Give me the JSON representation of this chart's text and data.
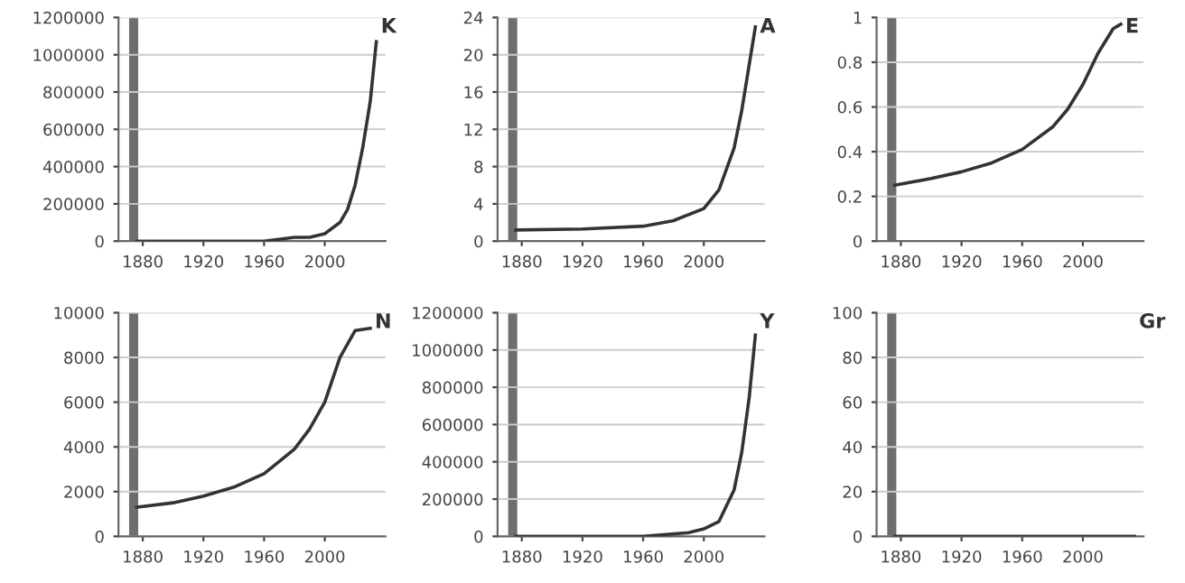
{
  "chart_data": [
    {
      "type": "line",
      "series": [
        {
          "name": "K",
          "color": "#333333",
          "x": [
            1876,
            1920,
            1960,
            1980,
            1990,
            2000,
            2010,
            2015,
            2020,
            2025,
            2030,
            2034
          ],
          "values": [
            0,
            0,
            0,
            20000,
            20000,
            40000,
            100000,
            170000,
            300000,
            500000,
            750000,
            1070000
          ]
        }
      ],
      "xlim": [
        1864,
        2040
      ],
      "xticks": [
        1880,
        1920,
        1960,
        2000
      ],
      "ylim": [
        0,
        1200000
      ],
      "yticks": [
        0,
        200000,
        400000,
        600000,
        800000,
        1000000,
        1200000
      ],
      "grid": "y",
      "bands": [
        {
          "axis": "x",
          "from": 1871,
          "to": 1877,
          "color": "#6e6e6e"
        }
      ]
    },
    {
      "type": "line",
      "series": [
        {
          "name": "A",
          "color": "#333333",
          "x": [
            1876,
            1920,
            1960,
            1980,
            2000,
            2010,
            2020,
            2025,
            2030,
            2034
          ],
          "values": [
            1.2,
            1.3,
            1.6,
            2.2,
            3.5,
            5.5,
            10,
            14,
            19,
            23
          ]
        }
      ],
      "xlim": [
        1864,
        2040
      ],
      "xticks": [
        1880,
        1920,
        1960,
        2000
      ],
      "ylim": [
        0,
        24
      ],
      "yticks": [
        0,
        4,
        8,
        12,
        16,
        20,
        24
      ],
      "grid": "y",
      "bands": [
        {
          "axis": "x",
          "from": 1871,
          "to": 1877,
          "color": "#6e6e6e"
        }
      ]
    },
    {
      "type": "line",
      "series": [
        {
          "name": "E",
          "color": "#333333",
          "x": [
            1876,
            1900,
            1920,
            1940,
            1960,
            1980,
            1990,
            2000,
            2010,
            2020,
            2025
          ],
          "values": [
            0.25,
            0.28,
            0.31,
            0.35,
            0.41,
            0.51,
            0.59,
            0.7,
            0.84,
            0.95,
            0.97
          ]
        }
      ],
      "xlim": [
        1864,
        2040
      ],
      "xticks": [
        1880,
        1920,
        1960,
        2000
      ],
      "ylim": [
        0,
        1
      ],
      "yticks": [
        0,
        0.2,
        0.4,
        0.6,
        0.8,
        1
      ],
      "grid": "y",
      "bands": [
        {
          "axis": "x",
          "from": 1871,
          "to": 1877,
          "color": "#6e6e6e"
        }
      ]
    },
    {
      "type": "line",
      "series": [
        {
          "name": "N",
          "color": "#333333",
          "x": [
            1876,
            1900,
            1920,
            1940,
            1960,
            1980,
            1990,
            2000,
            2010,
            2020,
            2030
          ],
          "values": [
            1300,
            1500,
            1800,
            2200,
            2800,
            3900,
            4800,
            6000,
            8000,
            9200,
            9300
          ]
        }
      ],
      "xlim": [
        1864,
        2040
      ],
      "xticks": [
        1880,
        1920,
        1960,
        2000
      ],
      "ylim": [
        0,
        10000
      ],
      "yticks": [
        0,
        2000,
        4000,
        6000,
        8000,
        10000
      ],
      "grid": "y",
      "bands": [
        {
          "axis": "x",
          "from": 1871,
          "to": 1877,
          "color": "#6e6e6e"
        }
      ]
    },
    {
      "type": "line",
      "series": [
        {
          "name": "Y",
          "color": "#333333",
          "x": [
            1876,
            1960,
            1990,
            2000,
            2010,
            2020,
            2025,
            2030,
            2034
          ],
          "values": [
            0,
            0,
            20000,
            40000,
            80000,
            250000,
            450000,
            750000,
            1080000
          ]
        }
      ],
      "xlim": [
        1864,
        2040
      ],
      "xticks": [
        1880,
        1920,
        1960,
        2000
      ],
      "ylim": [
        0,
        1200000
      ],
      "yticks": [
        0,
        200000,
        400000,
        600000,
        800000,
        1000000,
        1200000
      ],
      "grid": "y",
      "bands": [
        {
          "axis": "x",
          "from": 1871,
          "to": 1877,
          "color": "#6e6e6e"
        }
      ]
    },
    {
      "type": "line",
      "series": [
        {
          "name": "Gr",
          "color": "#333333",
          "x": [
            1876,
            1920,
            1960,
            2000,
            2034
          ],
          "values": [
            0,
            0,
            0,
            0,
            0
          ]
        }
      ],
      "xlim": [
        1864,
        2040
      ],
      "xticks": [
        1880,
        1920,
        1960,
        2000
      ],
      "ylim": [
        0,
        100
      ],
      "yticks": [
        0,
        20,
        40,
        60,
        80,
        100
      ],
      "grid": "y",
      "bands": [
        {
          "axis": "x",
          "from": 1871,
          "to": 1877,
          "color": "#6e6e6e"
        }
      ]
    }
  ]
}
